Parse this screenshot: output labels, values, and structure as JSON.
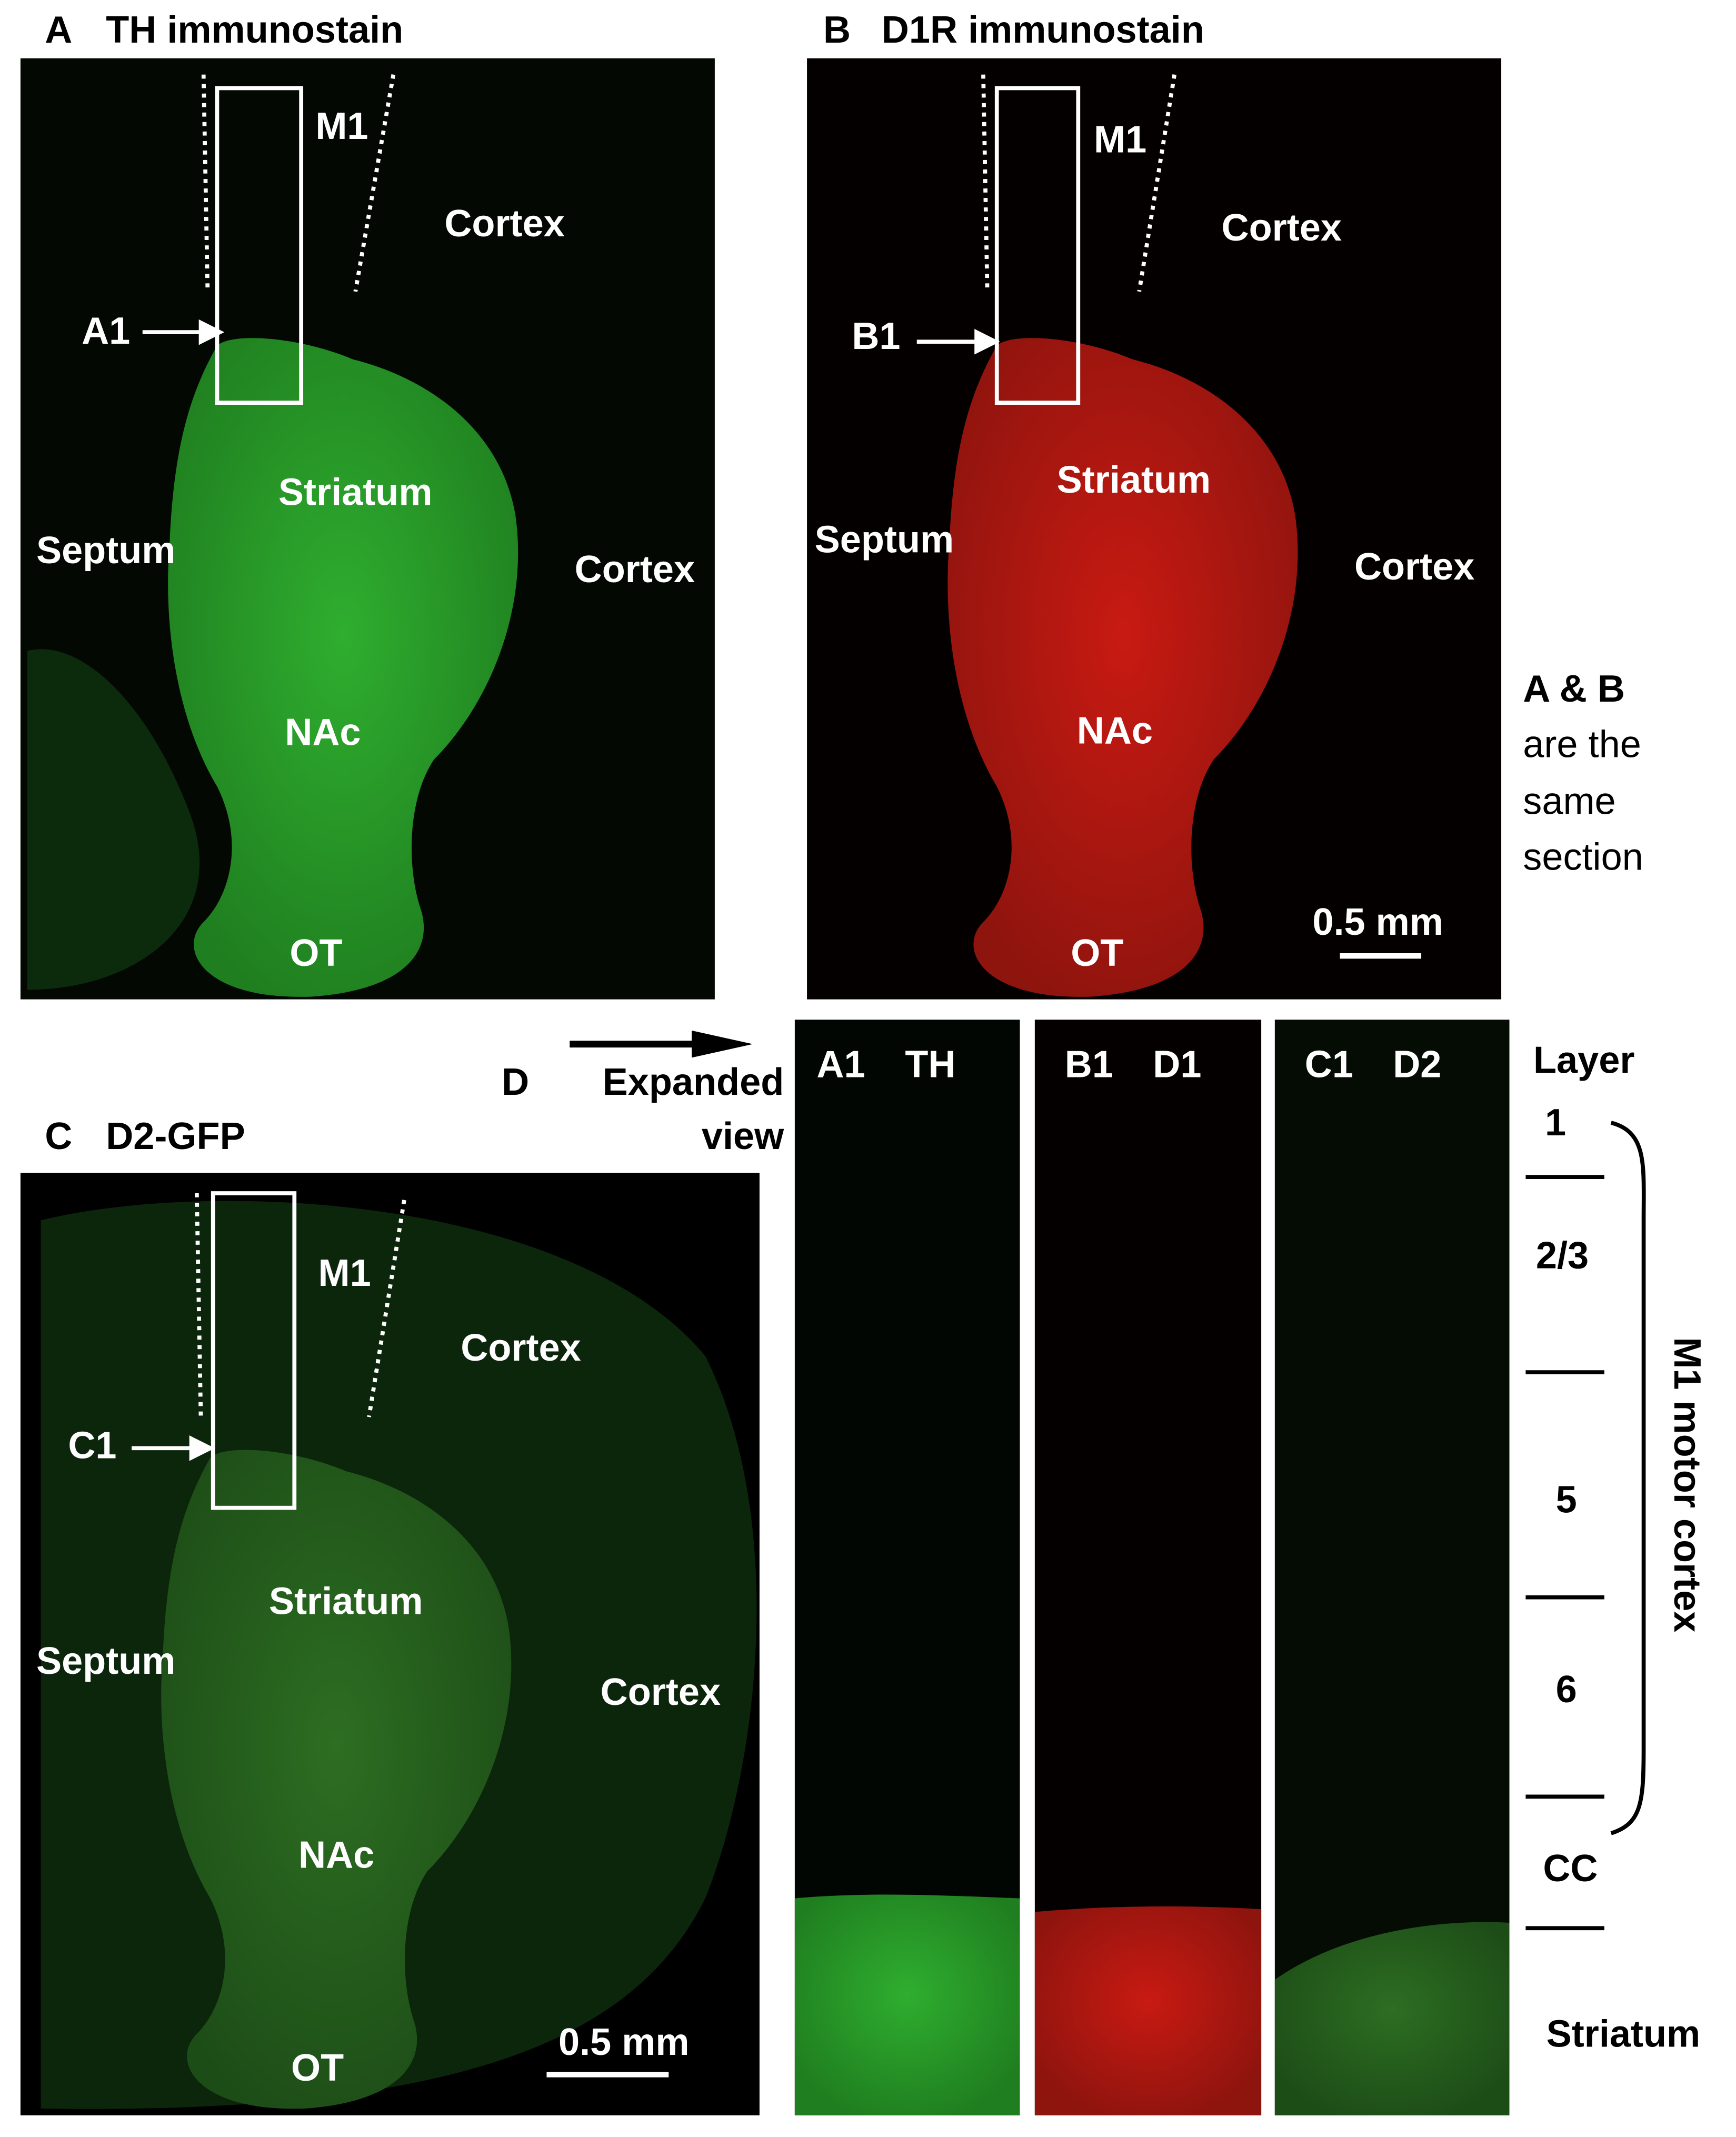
{
  "panel_a": {
    "letter": "A",
    "title": "TH immunostain",
    "labels": {
      "m1": "M1",
      "cortex_top": "Cortex",
      "inset": "A1",
      "striatum": "Striatum",
      "septum": "Septum",
      "cortex_side": "Cortex",
      "nac": "NAc",
      "ot": "OT"
    }
  },
  "panel_b": {
    "letter": "B",
    "title": "D1R immunostain",
    "labels": {
      "m1": "M1",
      "cortex_top": "Cortex",
      "inset": "B1",
      "striatum": "Striatum",
      "septum": "Septum",
      "cortex_side": "Cortex",
      "nac": "NAc",
      "ot": "OT"
    },
    "scale_bar": "0.5 mm"
  },
  "note": [
    "A & B",
    "are the",
    "same",
    "section"
  ],
  "panel_c": {
    "letter": "C",
    "title": "D2-GFP",
    "labels": {
      "m1": "M1",
      "cortex_top": "Cortex",
      "inset": "C1",
      "striatum": "Striatum",
      "septum": "Septum",
      "cortex_side": "Cortex",
      "nac": "NAc",
      "ot": "OT"
    },
    "scale_bar": "0.5 mm"
  },
  "panel_d": {
    "letter": "D",
    "title": [
      "Expanded",
      "view"
    ],
    "strips": [
      {
        "id": "A1",
        "label": "TH"
      },
      {
        "id": "B1",
        "label": "D1"
      },
      {
        "id": "C1",
        "label": "D2"
      }
    ],
    "layer_header": "Layer",
    "layers": [
      "1",
      "2/3",
      "5",
      "6",
      "CC",
      "Striatum"
    ],
    "bracket_label": "M1 motor cortex"
  }
}
